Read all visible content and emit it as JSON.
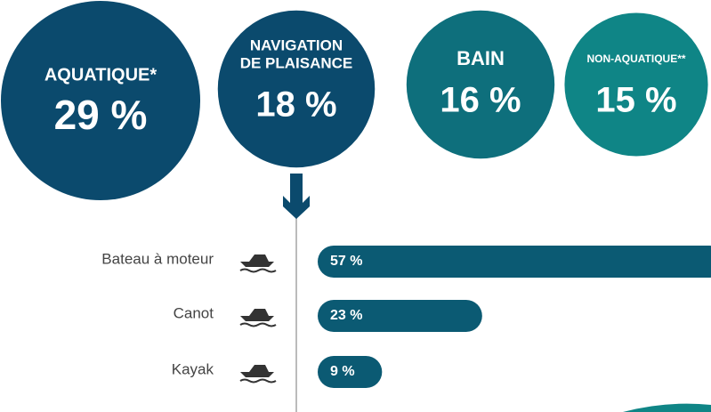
{
  "summary": [
    {
      "label": [
        "AQUATIQUE*"
      ],
      "value": 29,
      "value_label": "29 %",
      "color": "#0b4a6d"
    },
    {
      "label": [
        "NAVIGATION",
        "DE PLAISANCE"
      ],
      "value": 18,
      "value_label": "18 %",
      "color": "#0b4a6d"
    },
    {
      "label": [
        "BAIN"
      ],
      "value": 16,
      "value_label": "16 %",
      "color": "#0e6f7c"
    },
    {
      "label": [
        "NON-AQUATIQUE**"
      ],
      "value": 15,
      "value_label": "15 %",
      "color": "#0f8586"
    }
  ],
  "chart_data": {
    "type": "bar",
    "orientation": "horizontal",
    "categories": [
      "Bateau à moteur",
      "Canot",
      "Kayak"
    ],
    "values": [
      57,
      23,
      9
    ],
    "value_labels": [
      "57 %",
      "23 %",
      "9 %"
    ],
    "color": "#0b5a73",
    "xlim": [
      0,
      55
    ]
  }
}
